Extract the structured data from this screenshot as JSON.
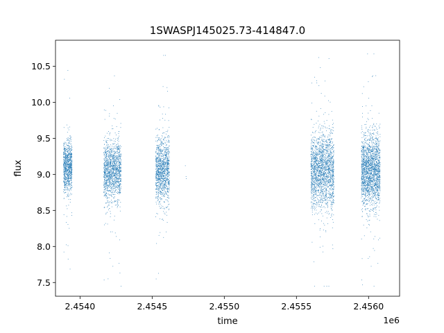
{
  "chart_data": {
    "type": "scatter",
    "title": "1SWASPJ145025.73-414847.0",
    "xlabel": "time",
    "ylabel": "flux",
    "x_offset_label": "1e6",
    "xlim": [
      2453830,
      2456215
    ],
    "ylim": [
      7.31,
      10.86
    ],
    "grid": false,
    "marker_color": "#1f77b4",
    "x_ticks": [
      {
        "value": 2454000,
        "label": "2.4540"
      },
      {
        "value": 2454500,
        "label": "2.4545"
      },
      {
        "value": 2455000,
        "label": "2.4550"
      },
      {
        "value": 2455500,
        "label": "2.4555"
      },
      {
        "value": 2456000,
        "label": "2.4560"
      }
    ],
    "y_ticks": [
      {
        "value": 7.5,
        "label": "7.5"
      },
      {
        "value": 8.0,
        "label": "8.0"
      },
      {
        "value": 8.5,
        "label": "8.5"
      },
      {
        "value": 9.0,
        "label": "9.0"
      },
      {
        "value": 9.5,
        "label": "9.5"
      },
      {
        "value": 10.0,
        "label": "10.0"
      },
      {
        "value": 10.5,
        "label": "10.5"
      }
    ],
    "clusters": [
      {
        "x_start": 2453885,
        "x_end": 2453945,
        "flux_center": 9.1,
        "flux_spread": 0.17,
        "n_points": 900,
        "flux_min": 7.5,
        "flux_max": 10.63
      },
      {
        "x_start": 2454165,
        "x_end": 2454285,
        "flux_center": 9.05,
        "flux_spread": 0.2,
        "n_points": 1400,
        "flux_min": 7.45,
        "flux_max": 10.68
      },
      {
        "x_start": 2454525,
        "x_end": 2454620,
        "flux_center": 9.05,
        "flux_spread": 0.22,
        "n_points": 1200,
        "flux_min": 7.55,
        "flux_max": 10.65
      },
      {
        "x_start": 2455600,
        "x_end": 2455760,
        "flux_center": 9.05,
        "flux_spread": 0.25,
        "n_points": 2000,
        "flux_min": 7.45,
        "flux_max": 10.62
      },
      {
        "x_start": 2455950,
        "x_end": 2456080,
        "flux_center": 9.05,
        "flux_spread": 0.25,
        "n_points": 2000,
        "flux_min": 7.45,
        "flux_max": 10.67
      }
    ],
    "isolated_points": [
      {
        "x": 2454730,
        "y": 9.12
      },
      {
        "x": 2454735,
        "y": 8.97
      },
      {
        "x": 2454736,
        "y": 8.94
      }
    ]
  }
}
